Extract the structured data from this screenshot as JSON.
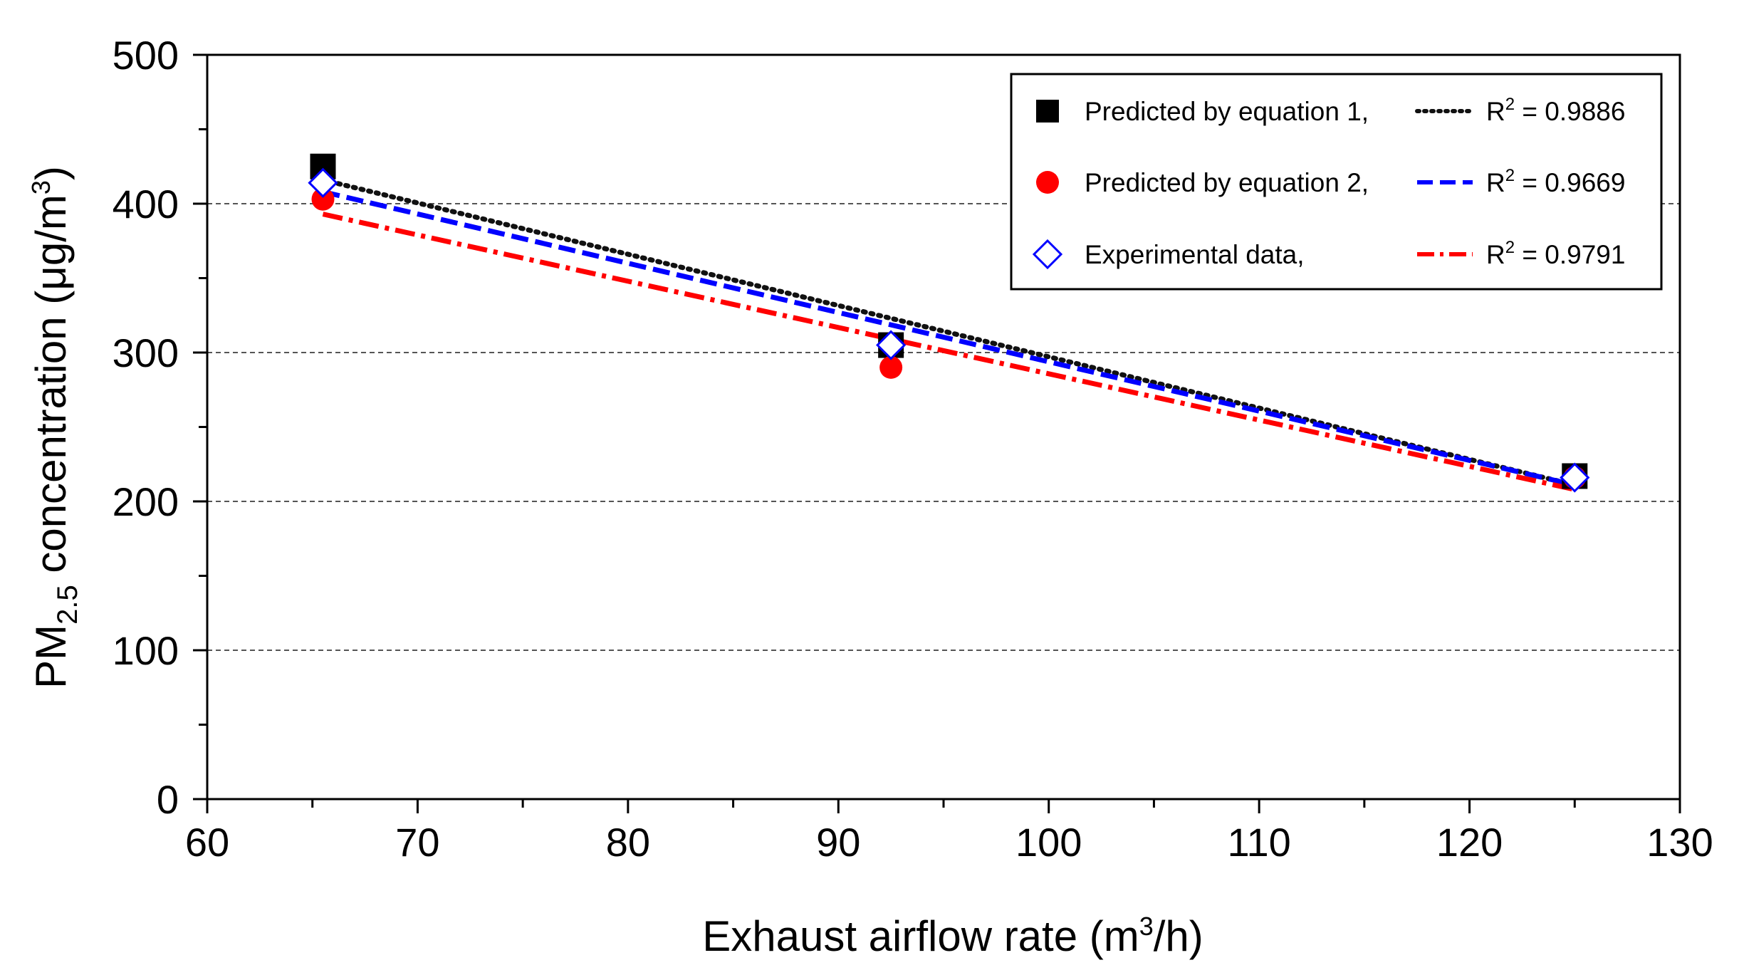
{
  "chart_data": {
    "type": "scatter",
    "xlabel": {
      "text": "Exhaust airflow rate (m",
      "sup": "3",
      "suffix": "/h)"
    },
    "ylabel": {
      "prefix": "PM",
      "sub": "2.5",
      "text": " concentration (μg/m",
      "sup": "3",
      "suffix": ")"
    },
    "xlim": [
      60,
      130
    ],
    "ylim": [
      0,
      500
    ],
    "xticks": [
      60,
      70,
      80,
      90,
      100,
      110,
      120,
      130
    ],
    "yticks": [
      0,
      100,
      200,
      300,
      400,
      500
    ],
    "xtick_labels": [
      "60",
      "70",
      "80",
      "90",
      "100",
      "110",
      "120",
      "130"
    ],
    "ytick_labels": [
      "0",
      "100",
      "200",
      "300",
      "400",
      "500"
    ],
    "x_minor_step": 5,
    "y_minor_step": 50,
    "grid": {
      "horizontal_dashed_at": [
        100,
        200,
        300,
        400
      ],
      "color": "#555555"
    },
    "legend_position": "top-right",
    "series": [
      {
        "name": "Predicted by equation 1,",
        "marker": "square",
        "color": "#000000",
        "x": [
          65.5,
          92.5,
          125
        ],
        "y": [
          425,
          305,
          217
        ],
        "fit": {
          "style": "dotted",
          "color": "#111111",
          "x": [
            65.5,
            125
          ],
          "y": [
            416,
            211
          ],
          "r2_label": "R",
          "r2_sup": "2",
          "r2_value": " = 0.9886"
        }
      },
      {
        "name": "Predicted by equation 2,",
        "marker": "circle",
        "color": "#ff0000",
        "x": [
          65.5,
          92.5,
          125
        ],
        "y": [
          403,
          290,
          216
        ],
        "fit": {
          "style": "dashed",
          "color": "#0000ff",
          "x": [
            65.5,
            125
          ],
          "y": [
            408,
            211
          ],
          "r2_label": "R",
          "r2_sup": "2",
          "r2_value": " = 0.9669"
        }
      },
      {
        "name": "Experimental data,",
        "marker": "diamond",
        "color": "#0000ff",
        "x": [
          65.5,
          92.5,
          125
        ],
        "y": [
          414,
          305,
          216
        ],
        "fit": {
          "style": "dashdot",
          "color": "#ff0000",
          "x": [
            65.5,
            125
          ],
          "y": [
            393,
            208
          ],
          "r2_label": "R",
          "r2_sup": "2",
          "r2_value": " = 0.9791"
        }
      }
    ]
  }
}
